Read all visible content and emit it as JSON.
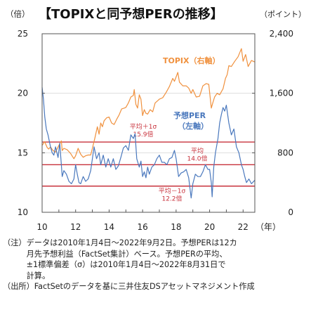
{
  "chart_data": {
    "type": "line",
    "title": "【TOPIXと同予想PERの推移】",
    "left_unit": "（倍）",
    "right_unit": "（ポイント）",
    "x_unit": "（年）",
    "x_range": [
      10,
      22.7
    ],
    "x_ticks": [
      "10",
      "12",
      "14",
      "16",
      "18",
      "20",
      "22"
    ],
    "left_axis": {
      "min": 10,
      "max": 25,
      "ticks": [
        "10",
        "15",
        "20",
        "25"
      ]
    },
    "right_axis": {
      "min": 0,
      "max": 2400,
      "ticks": [
        "0",
        "800",
        "1,600",
        "2,400"
      ]
    },
    "series": [
      {
        "name": "TOPIX（右軸）",
        "axis": "right",
        "color": "#f0913e",
        "x": [
          10.0,
          10.15,
          10.3,
          10.4,
          10.5,
          10.65,
          10.8,
          11.0,
          11.15,
          11.2,
          11.3,
          11.5,
          11.7,
          11.9,
          12.0,
          12.15,
          12.3,
          12.45,
          12.6,
          12.75,
          12.9,
          13.0,
          13.15,
          13.3,
          13.4,
          13.5,
          13.6,
          13.7,
          13.85,
          14.0,
          14.15,
          14.3,
          14.45,
          14.6,
          14.75,
          14.9,
          15.0,
          15.15,
          15.3,
          15.45,
          15.5,
          15.6,
          15.7,
          15.8,
          15.9,
          16.0,
          16.1,
          16.2,
          16.3,
          16.45,
          16.6,
          16.75,
          16.9,
          17.0,
          17.2,
          17.4,
          17.6,
          17.8,
          17.9,
          18.0,
          18.1,
          18.2,
          18.4,
          18.6,
          18.75,
          18.9,
          19.0,
          19.2,
          19.4,
          19.6,
          19.8,
          19.95,
          20.1,
          20.2,
          20.3,
          20.45,
          20.6,
          20.8,
          20.95,
          21.05,
          21.15,
          21.3,
          21.5,
          21.7,
          21.9,
          22.0,
          22.15,
          22.3,
          22.5,
          22.7
        ],
        "y": [
          900,
          950,
          870,
          850,
          880,
          830,
          810,
          900,
          960,
          830,
          860,
          840,
          790,
          720,
          760,
          860,
          780,
          740,
          760,
          770,
          770,
          860,
          1000,
          1150,
          1050,
          1200,
          1150,
          1230,
          1270,
          1280,
          1200,
          1180,
          1250,
          1310,
          1390,
          1400,
          1410,
          1470,
          1550,
          1570,
          1650,
          1450,
          1400,
          1580,
          1520,
          1300,
          1380,
          1330,
          1320,
          1380,
          1350,
          1470,
          1500,
          1520,
          1540,
          1610,
          1690,
          1800,
          1760,
          1820,
          1880,
          1750,
          1700,
          1700,
          1670,
          1600,
          1650,
          1550,
          1560,
          1700,
          1730,
          1720,
          1400,
          1480,
          1550,
          1600,
          1580,
          1660,
          1800,
          1850,
          1970,
          1960,
          2030,
          2090,
          2200,
          2030,
          2120,
          1960,
          2040,
          2020
        ]
      },
      {
        "name": "予想PER（左軸）",
        "axis": "left",
        "color": "#4a78bd",
        "x": [
          10.0,
          10.08,
          10.16,
          10.25,
          10.35,
          10.5,
          10.6,
          10.7,
          10.8,
          10.95,
          11.05,
          11.15,
          11.2,
          11.3,
          11.45,
          11.6,
          11.75,
          11.9,
          12.0,
          12.1,
          12.2,
          12.3,
          12.45,
          12.6,
          12.75,
          12.9,
          13.0,
          13.1,
          13.25,
          13.4,
          13.5,
          13.65,
          13.8,
          13.95,
          14.1,
          14.25,
          14.4,
          14.55,
          14.7,
          14.85,
          15.0,
          15.15,
          15.3,
          15.45,
          15.55,
          15.65,
          15.8,
          15.9,
          16.0,
          16.1,
          16.2,
          16.3,
          16.4,
          16.55,
          16.7,
          16.85,
          17.0,
          17.15,
          17.3,
          17.45,
          17.6,
          17.75,
          17.9,
          18.0,
          18.15,
          18.3,
          18.45,
          18.6,
          18.75,
          18.9,
          19.0,
          19.15,
          19.3,
          19.45,
          19.6,
          19.75,
          19.9,
          20.0,
          20.1,
          20.15,
          20.25,
          20.35,
          20.5,
          20.6,
          20.7,
          20.8,
          20.9,
          21.0,
          21.15,
          21.3,
          21.45,
          21.6,
          21.75,
          21.9,
          22.0,
          22.1,
          22.2,
          22.35,
          22.5,
          22.7
        ],
        "y": [
          20.5,
          19.5,
          18.0,
          17.0,
          16.5,
          15.5,
          15.0,
          14.8,
          15.5,
          14.6,
          15.8,
          14.0,
          13.0,
          13.5,
          13.2,
          12.6,
          12.4,
          12.8,
          14.0,
          13.2,
          12.5,
          12.4,
          13.0,
          12.6,
          12.8,
          13.5,
          14.5,
          15.5,
          14.5,
          15.0,
          14.0,
          14.8,
          13.8,
          14.5,
          13.8,
          14.5,
          13.6,
          13.9,
          14.6,
          15.4,
          15.6,
          15.2,
          16.5,
          16.2,
          16.6,
          14.5,
          13.8,
          14.3,
          13.0,
          13.4,
          12.9,
          13.8,
          13.2,
          13.8,
          14.0,
          14.5,
          14.8,
          14.2,
          14.2,
          14.0,
          14.5,
          14.6,
          15.2,
          14.5,
          13.0,
          13.3,
          13.4,
          13.6,
          12.9,
          11.2,
          12.4,
          13.2,
          13.0,
          13.0,
          13.4,
          14.0,
          13.6,
          13.6,
          12.5,
          11.3,
          13.8,
          15.0,
          16.2,
          17.5,
          18.2,
          18.8,
          18.5,
          19.0,
          17.5,
          16.5,
          17.0,
          15.5,
          15.0,
          14.0,
          13.6,
          13.0,
          12.5,
          12.8,
          12.4,
          12.7
        ]
      }
    ],
    "ref_lines": [
      {
        "label": "平均＋1σ",
        "value_label": "15.9倍",
        "value": 15.9
      },
      {
        "label": "平均",
        "value_label": "14.0倍",
        "value": 14.0
      },
      {
        "label": "平均－1σ",
        "value_label": "12.2倍",
        "value": 12.2
      }
    ],
    "ref_color": "#c8323c"
  },
  "labels": {
    "topix_series": [
      "TOPIX（右軸）"
    ],
    "per_series": [
      "予想PER",
      "（左軸）"
    ]
  },
  "notes": [
    {
      "head": "（注）",
      "lines": [
        "データは2010年1月4日～2022年9月2日。予想PERは12カ",
        "月先予想利益（FactSet集計）ベース。予想PERの平均、",
        "±1標準偏差（σ）は2010年1月4日～2022年8月31日で",
        "計算。"
      ]
    },
    {
      "head": "（出所）",
      "lines": [
        "FactSetのデータを基に三井住友DSアセットマネジメント作成"
      ]
    }
  ]
}
